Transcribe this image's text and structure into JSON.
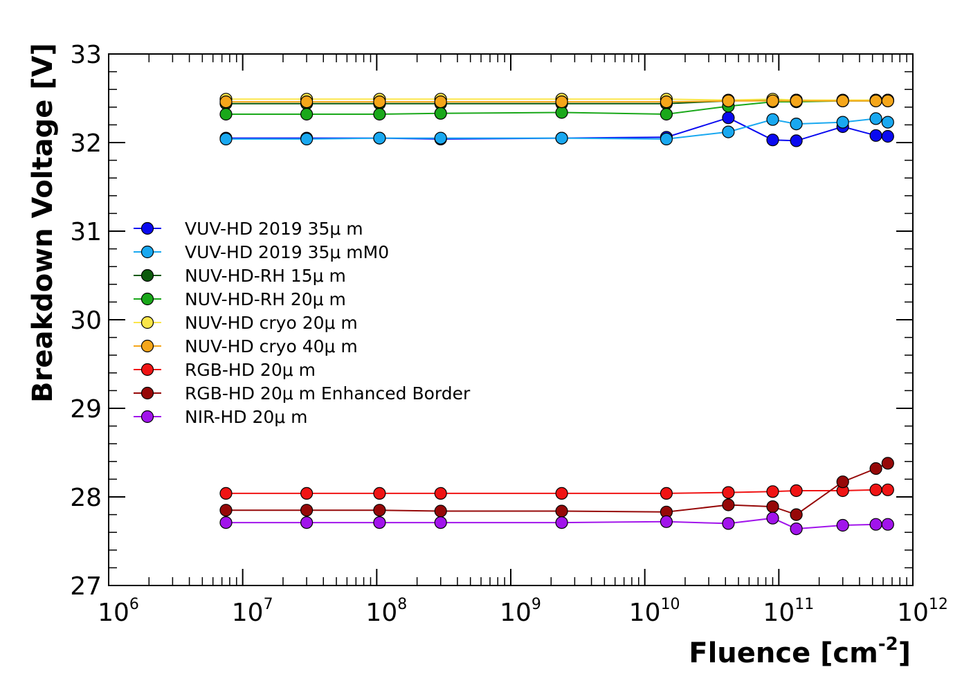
{
  "chart_data": {
    "type": "scatter",
    "xlabel": {
      "main": "Fluence [cm",
      "sup": "-2",
      "end": "]"
    },
    "ylabel": "Breakdown Voltage [V]",
    "xscale": "log",
    "xlim": [
      1000000.0,
      1000000000000.0
    ],
    "ylim": [
      27,
      33
    ],
    "x_ticks": [
      {
        "base": "10",
        "exp": "6",
        "value": 1000000.0
      },
      {
        "base": "10",
        "exp": "7",
        "value": 10000000.0
      },
      {
        "base": "10",
        "exp": "8",
        "value": 100000000.0
      },
      {
        "base": "10",
        "exp": "9",
        "value": 1000000000.0
      },
      {
        "base": "10",
        "exp": "10",
        "value": 10000000000.0
      },
      {
        "base": "10",
        "exp": "11",
        "value": 100000000000.0
      },
      {
        "base": "10",
        "exp": "12",
        "value": 1000000000000.0
      }
    ],
    "y_ticks": [
      "27",
      "28",
      "29",
      "30",
      "31",
      "32",
      "33"
    ],
    "grid": false,
    "legend_position": "center-left",
    "series": [
      {
        "name": "VUV-HD 2019 35μ m",
        "color": "#0a0af0",
        "points": [
          [
            7500000.0,
            32.05
          ],
          [
            30000000.0,
            32.05
          ],
          [
            105000000.0,
            32.05
          ],
          [
            300000000.0,
            32.04
          ],
          [
            2400000000.0,
            32.05
          ],
          [
            14500000000.0,
            32.06
          ],
          [
            42000000000.0,
            32.28
          ],
          [
            90000000000.0,
            32.03
          ],
          [
            135000000000.0,
            32.02
          ],
          [
            300000000000.0,
            32.18
          ],
          [
            530000000000.0,
            32.08
          ],
          [
            650000000000.0,
            32.07
          ]
        ]
      },
      {
        "name": "VUV-HD 2019 35μ mM0",
        "color": "#19a8f0",
        "points": [
          [
            7500000.0,
            32.04
          ],
          [
            30000000.0,
            32.04
          ],
          [
            105000000.0,
            32.05
          ],
          [
            300000000.0,
            32.05
          ],
          [
            2400000000.0,
            32.05
          ],
          [
            14500000000.0,
            32.04
          ],
          [
            42000000000.0,
            32.12
          ],
          [
            90000000000.0,
            32.26
          ],
          [
            135000000000.0,
            32.21
          ],
          [
            300000000000.0,
            32.23
          ],
          [
            530000000000.0,
            32.27
          ],
          [
            650000000000.0,
            32.23
          ]
        ]
      },
      {
        "name": "NUV-HD-RH 15μ m",
        "color": "#0c5a0c",
        "points": [
          [
            7500000.0,
            32.44
          ],
          [
            30000000.0,
            32.44
          ],
          [
            105000000.0,
            32.44
          ],
          [
            300000000.0,
            32.44
          ],
          [
            2400000000.0,
            32.44
          ],
          [
            14500000000.0,
            32.44
          ],
          [
            42000000000.0,
            32.47
          ],
          [
            90000000000.0,
            32.48
          ],
          [
            135000000000.0,
            32.48
          ],
          [
            300000000000.0,
            32.47
          ],
          [
            530000000000.0,
            32.48
          ],
          [
            650000000000.0,
            32.48
          ]
        ]
      },
      {
        "name": "NUV-HD-RH 20μ m",
        "color": "#1aa81a",
        "points": [
          [
            7500000.0,
            32.32
          ],
          [
            30000000.0,
            32.32
          ],
          [
            105000000.0,
            32.32
          ],
          [
            300000000.0,
            32.33
          ],
          [
            2400000000.0,
            32.34
          ],
          [
            14500000000.0,
            32.32
          ],
          [
            42000000000.0,
            32.41
          ],
          [
            90000000000.0,
            32.46
          ],
          [
            135000000000.0,
            32.46
          ],
          [
            300000000000.0,
            32.47
          ],
          [
            530000000000.0,
            32.47
          ],
          [
            650000000000.0,
            32.47
          ]
        ]
      },
      {
        "name": "NUV-HD cryo 20μ m",
        "color": "#fbe64a",
        "points": [
          [
            7500000.0,
            32.49
          ],
          [
            30000000.0,
            32.49
          ],
          [
            105000000.0,
            32.49
          ],
          [
            300000000.0,
            32.49
          ],
          [
            2400000000.0,
            32.49
          ],
          [
            14500000000.0,
            32.49
          ],
          [
            42000000000.0,
            32.48
          ],
          [
            90000000000.0,
            32.49
          ],
          [
            135000000000.0,
            32.48
          ],
          [
            300000000000.0,
            32.48
          ],
          [
            530000000000.0,
            32.48
          ],
          [
            650000000000.0,
            32.48
          ]
        ]
      },
      {
        "name": "NUV-HD cryo 40μ m",
        "color": "#f5a61a",
        "points": [
          [
            7500000.0,
            32.46
          ],
          [
            30000000.0,
            32.46
          ],
          [
            105000000.0,
            32.46
          ],
          [
            300000000.0,
            32.46
          ],
          [
            2400000000.0,
            32.46
          ],
          [
            14500000000.0,
            32.46
          ],
          [
            42000000000.0,
            32.47
          ],
          [
            90000000000.0,
            32.47
          ],
          [
            135000000000.0,
            32.47
          ],
          [
            300000000000.0,
            32.47
          ],
          [
            530000000000.0,
            32.47
          ],
          [
            650000000000.0,
            32.47
          ]
        ]
      },
      {
        "name": "RGB-HD 20μ m",
        "color": "#f01414",
        "points": [
          [
            7500000.0,
            28.04
          ],
          [
            30000000.0,
            28.04
          ],
          [
            105000000.0,
            28.04
          ],
          [
            300000000.0,
            28.04
          ],
          [
            2400000000.0,
            28.04
          ],
          [
            14500000000.0,
            28.04
          ],
          [
            42000000000.0,
            28.05
          ],
          [
            90000000000.0,
            28.06
          ],
          [
            135000000000.0,
            28.07
          ],
          [
            300000000000.0,
            28.07
          ],
          [
            530000000000.0,
            28.08
          ],
          [
            650000000000.0,
            28.08
          ]
        ]
      },
      {
        "name": "RGB-HD 20μ m Enhanced Border",
        "color": "#960808",
        "points": [
          [
            7500000.0,
            27.85
          ],
          [
            30000000.0,
            27.85
          ],
          [
            105000000.0,
            27.85
          ],
          [
            300000000.0,
            27.84
          ],
          [
            2400000000.0,
            27.84
          ],
          [
            14500000000.0,
            27.83
          ],
          [
            42000000000.0,
            27.91
          ],
          [
            90000000000.0,
            27.89
          ],
          [
            135000000000.0,
            27.8
          ],
          [
            300000000000.0,
            28.17
          ],
          [
            530000000000.0,
            28.32
          ],
          [
            650000000000.0,
            28.38
          ]
        ]
      },
      {
        "name": "NIR-HD 20μ m",
        "color": "#a114eb",
        "points": [
          [
            7500000.0,
            27.71
          ],
          [
            30000000.0,
            27.71
          ],
          [
            105000000.0,
            27.71
          ],
          [
            300000000.0,
            27.71
          ],
          [
            2400000000.0,
            27.71
          ],
          [
            14500000000.0,
            27.72
          ],
          [
            42000000000.0,
            27.7
          ],
          [
            90000000000.0,
            27.76
          ],
          [
            135000000000.0,
            27.64
          ],
          [
            300000000000.0,
            27.68
          ],
          [
            530000000000.0,
            27.69
          ],
          [
            650000000000.0,
            27.69
          ]
        ]
      }
    ]
  }
}
